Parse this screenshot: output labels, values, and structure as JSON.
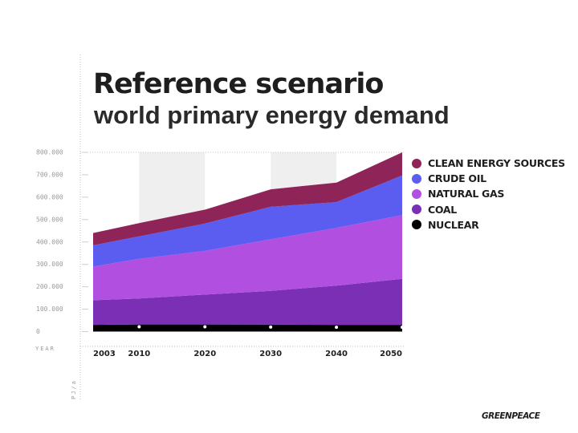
{
  "title": "Reference scenario",
  "subtitle": "world primary energy demand",
  "logo_text": "GREENPEACE",
  "chart_data": {
    "type": "area",
    "stacked": true,
    "x": [
      2003,
      2010,
      2020,
      2030,
      2040,
      2050
    ],
    "x_tick_labels": [
      "2003",
      "2010",
      "2020",
      "2030",
      "2040",
      "2050"
    ],
    "xlabel": "YEAR",
    "ylabel": "PJ/a",
    "ylim": [
      0,
      800000
    ],
    "y_ticks": [
      0,
      100000,
      200000,
      300000,
      400000,
      500000,
      600000,
      700000,
      800000
    ],
    "y_tick_labels": [
      "0",
      "100.000",
      "200.000",
      "300.000",
      "400.000",
      "500.000",
      "600.000",
      "700.000",
      "800.000"
    ],
    "legend_position": "right",
    "grid": "alternating vertical bands",
    "series": [
      {
        "name": "NUCLEAR",
        "color": "#000000",
        "values": [
          30000,
          32000,
          32000,
          31000,
          30000,
          30000
        ]
      },
      {
        "name": "COAL",
        "color": "#7a2fb5",
        "values": [
          110000,
          116000,
          133000,
          151000,
          175000,
          205000
        ]
      },
      {
        "name": "NATURAL GAS",
        "color": "#b04fe0",
        "values": [
          150000,
          177000,
          195000,
          230000,
          258000,
          285000
        ]
      },
      {
        "name": "CRUDE OIL",
        "color": "#5b5cf0",
        "values": [
          95000,
          100000,
          122000,
          145000,
          115000,
          177000
        ]
      },
      {
        "name": "CLEAN ENERGY SOURCES",
        "color": "#8e2458",
        "values": [
          55000,
          59000,
          62000,
          78000,
          87000,
          103000
        ]
      }
    ],
    "legend_order": [
      "CLEAN ENERGY SOURCES",
      "CRUDE OIL",
      "NATURAL GAS",
      "COAL",
      "NUCLEAR"
    ]
  }
}
